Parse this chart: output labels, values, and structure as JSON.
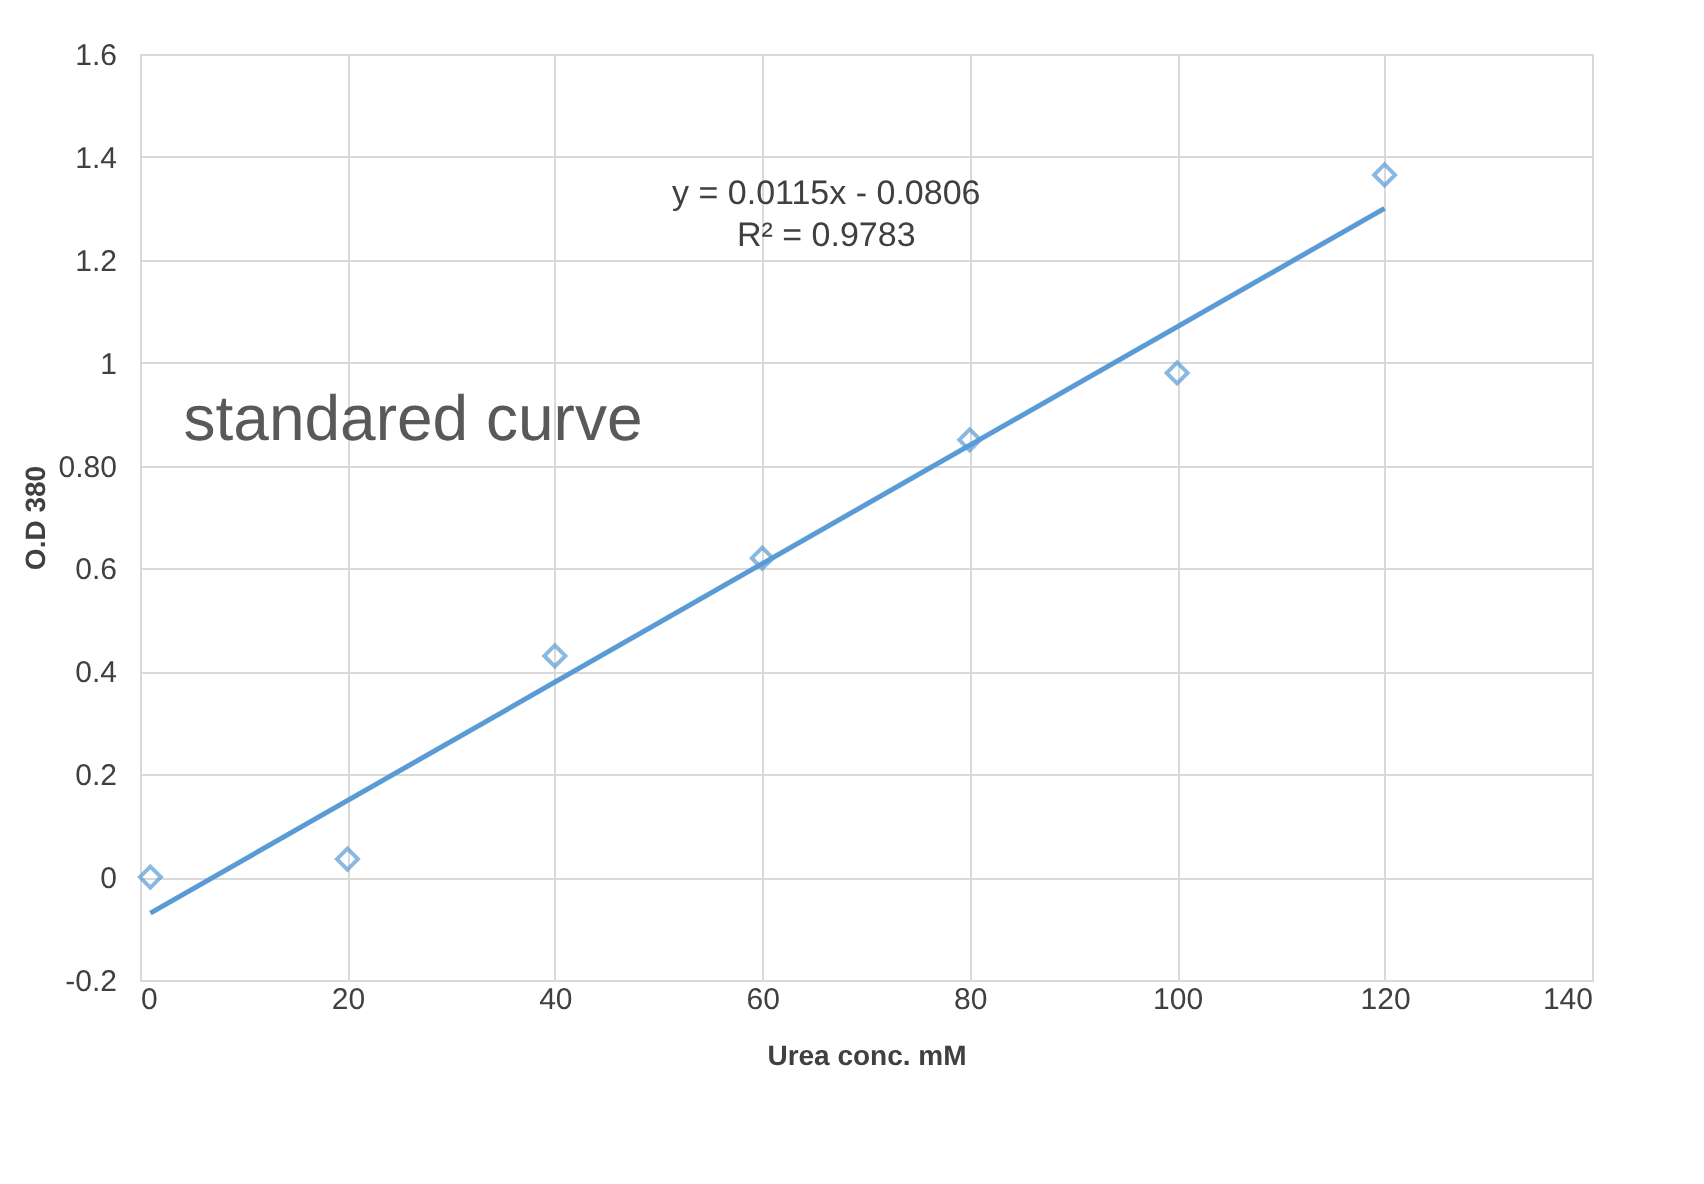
{
  "chart_data": {
    "type": "scatter",
    "xlabel": "Urea conc. mM",
    "ylabel": "O.D 380",
    "annotations": [
      "y = 0.0115x - 0.0806\nR² = 0.9783",
      "standared curve"
    ],
    "series": [
      {
        "color": "#5b9bd5",
        "marker": "diamond",
        "x": [
          1,
          20,
          40,
          60,
          80,
          100,
          120
        ],
        "values": [
          0.0,
          0.035,
          0.43,
          0.62,
          0.85,
          0.98,
          1.365
        ]
      },
      {
        "type": "line",
        "color": "#5b9bd5",
        "line_style": "solid",
        "x": [
          1,
          120
        ],
        "values": [
          -0.07,
          1.3
        ]
      }
    ],
    "xlim": [
      0,
      140
    ],
    "xticks": [
      0,
      20,
      40,
      60,
      80,
      100,
      120,
      140
    ],
    "ylim": [
      -0.2,
      1.6
    ],
    "yticks": [
      -0.2,
      0,
      0.2,
      0.4,
      0.6,
      {
        "value": 0.8,
        "label": "0.80"
      },
      1,
      1.2,
      1.4,
      1.6
    ],
    "grid": true
  }
}
